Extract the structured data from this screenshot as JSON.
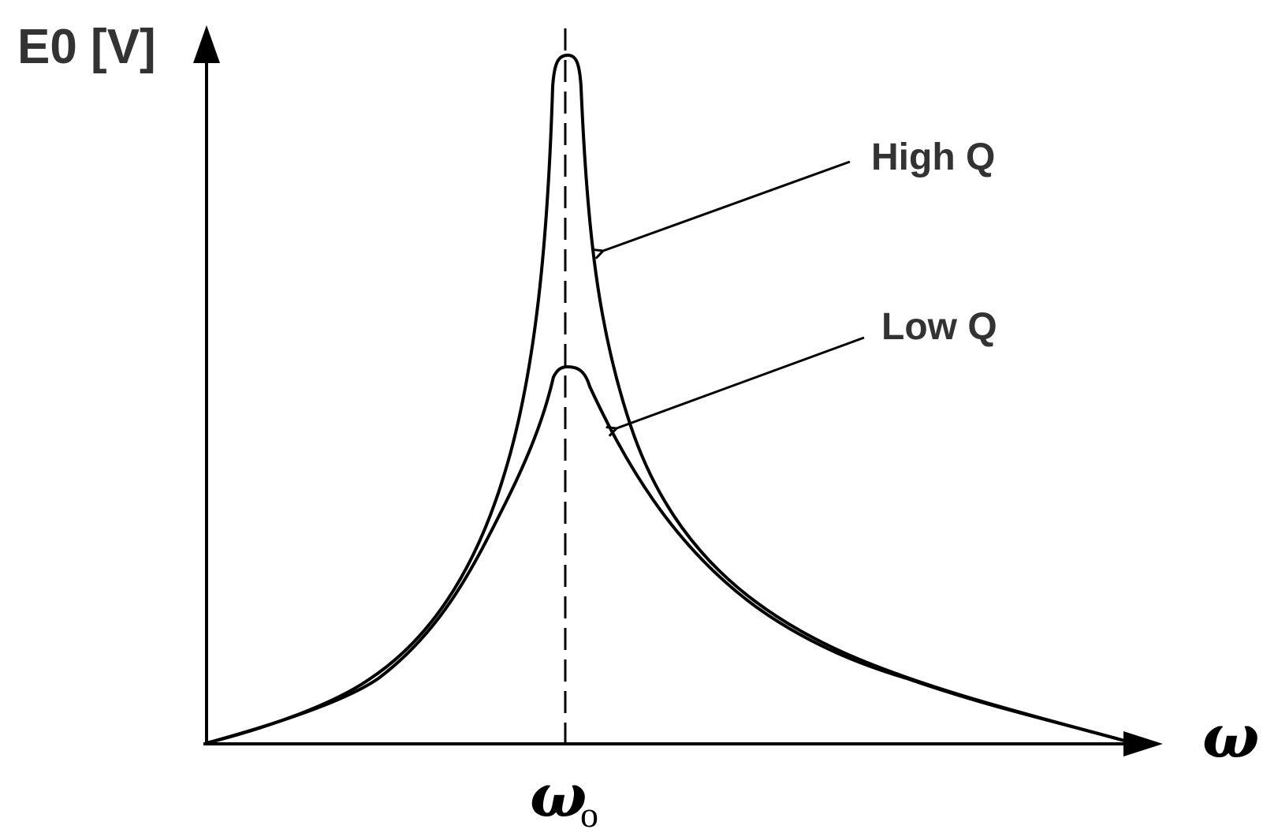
{
  "y_axis_label": "E0 [V]",
  "x_axis_label": "ω",
  "resonance_label": "ω",
  "resonance_subscript": "o",
  "curves": [
    {
      "label": "High Q"
    },
    {
      "label": "Low Q"
    }
  ],
  "colors": {
    "ink": "#000000",
    "label": "#333333"
  }
}
